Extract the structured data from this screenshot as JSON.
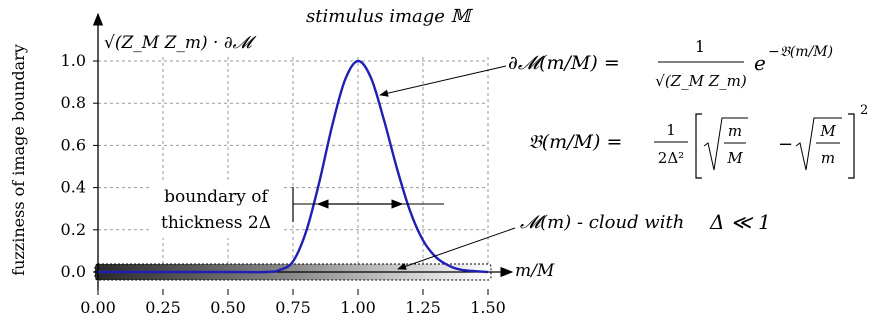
{
  "chart_data": {
    "type": "line",
    "title": "stimulus image 𝕄",
    "xlabel": "m/M",
    "ylabel": "fuzziness of image boundary",
    "y_axis_annotation": "√(Z_M Z_m) · ∂𝓜",
    "xlim": [
      0,
      1.5
    ],
    "ylim": [
      0,
      1.0
    ],
    "x_ticks": [
      "0.00",
      "0.25",
      "0.50",
      "0.75",
      "1.00",
      "1.25",
      "1.50"
    ],
    "y_ticks": [
      "0.0",
      "0.2",
      "0.4",
      "0.6",
      "0.8",
      "1.0"
    ],
    "grid": true,
    "series": [
      {
        "color": "#1f1fb4",
        "x": [
          0.0,
          0.5,
          0.65,
          0.7,
          0.75,
          0.8,
          0.85,
          0.9,
          0.95,
          1.0,
          1.05,
          1.1,
          1.15,
          1.2,
          1.25,
          1.3,
          1.35,
          1.4,
          1.5
        ],
        "y": [
          0.0,
          0.0,
          0.0,
          0.01,
          0.05,
          0.19,
          0.42,
          0.69,
          0.91,
          1.0,
          0.92,
          0.72,
          0.49,
          0.29,
          0.15,
          0.07,
          0.03,
          0.01,
          0.0
        ]
      }
    ],
    "annotations": {
      "formula_1_lhs": "∂𝓜(m/M) =",
      "formula_1_num": "1",
      "formula_1_den": "√(Z_M Z_m)",
      "formula_1_exp": "e",
      "formula_1_exp_sup": "−𝔅(m/M)",
      "formula_2_lhs": "𝔅(m/M) =",
      "formula_2_frac_num": "1",
      "formula_2_frac_den": "2Δ²",
      "formula_2_a_num": "m",
      "formula_2_a_den": "M",
      "formula_2_minus": "−",
      "formula_2_b_num": "M",
      "formula_2_b_den": "m",
      "formula_2_sup": "2",
      "boundary_line1": "boundary of",
      "boundary_line2": "thickness 2Δ",
      "cloud_label": "𝓜(m) - cloud with",
      "cloud_condition": "Δ ≪ 1"
    }
  }
}
